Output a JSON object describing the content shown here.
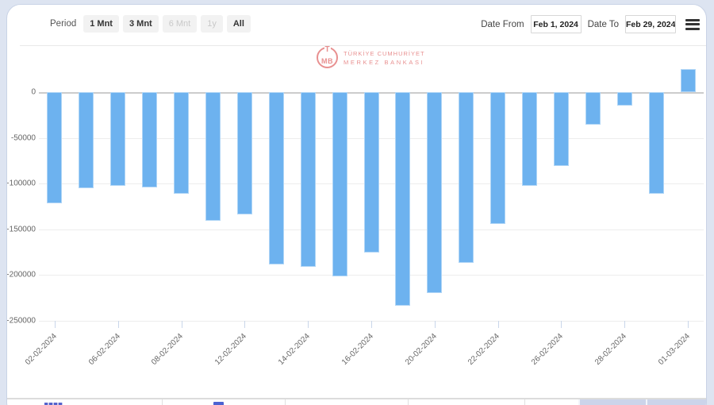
{
  "toolbar": {
    "period_label": "Period",
    "period_buttons": [
      {
        "label": "1 Mnt",
        "state": "enabled"
      },
      {
        "label": "3 Mnt",
        "state": "enabled"
      },
      {
        "label": "6 Mnt",
        "state": "disabled"
      },
      {
        "label": "1y",
        "state": "disabled"
      },
      {
        "label": "All",
        "state": "enabled"
      }
    ],
    "date_from_label": "Date From",
    "date_from_value": "Feb 1, 2024",
    "date_to_label": "Date To",
    "date_to_value": "Feb 29, 2024",
    "menu_icon": "hamburger-icon"
  },
  "watermark": {
    "logo_letter_top": "T",
    "logo_letters_bottom": "MB",
    "line1": "TÜRKİYE CUMHURİYET",
    "line2": "MERKEZ BANKASI",
    "color": "#e89090"
  },
  "chart_data": {
    "type": "bar",
    "title": "",
    "xlabel": "",
    "ylabel": "",
    "x": [
      "02-02-2024",
      "05-02-2024",
      "06-02-2024",
      "07-02-2024",
      "08-02-2024",
      "09-02-2024",
      "12-02-2024",
      "13-02-2024",
      "14-02-2024",
      "15-02-2024",
      "16-02-2024",
      "19-02-2024",
      "20-02-2024",
      "21-02-2024",
      "22-02-2024",
      "23-02-2024",
      "26-02-2024",
      "27-02-2024",
      "28-02-2024",
      "29-02-2024",
      "01-03-2024"
    ],
    "values": [
      -122000,
      -105000,
      -103000,
      -104000,
      -111000,
      -141000,
      -134000,
      -189000,
      -191000,
      -202000,
      -176000,
      -234000,
      -220000,
      -187000,
      -144000,
      -103000,
      -81000,
      -36000,
      -15000,
      -111000,
      25000
    ],
    "x_ticks": [
      {
        "index": 0,
        "label": "02-02-2024"
      },
      {
        "index": 2,
        "label": "06-02-2024"
      },
      {
        "index": 4,
        "label": "08-02-2024"
      },
      {
        "index": 6,
        "label": "12-02-2024"
      },
      {
        "index": 8,
        "label": "14-02-2024"
      },
      {
        "index": 10,
        "label": "16-02-2024"
      },
      {
        "index": 12,
        "label": "20-02-2024"
      },
      {
        "index": 14,
        "label": "22-02-2024"
      },
      {
        "index": 16,
        "label": "26-02-2024"
      },
      {
        "index": 18,
        "label": "28-02-2024"
      },
      {
        "index": 20,
        "label": "01-03-2024"
      }
    ],
    "y_ticks": [
      {
        "value": 0,
        "label": "0"
      },
      {
        "value": -50000,
        "label": "-50000"
      },
      {
        "value": -100000,
        "label": "-100000"
      },
      {
        "value": -150000,
        "label": "-150000"
      },
      {
        "value": -200000,
        "label": "-200000"
      },
      {
        "value": -250000,
        "label": "-250000"
      }
    ],
    "ylim": [
      -250000,
      30000
    ],
    "grid": true,
    "legend": "none",
    "bar_color": "#6db2ef",
    "grid_color": "#ededed",
    "zero_line_color": "#cccccc",
    "label_color": "#666666"
  }
}
